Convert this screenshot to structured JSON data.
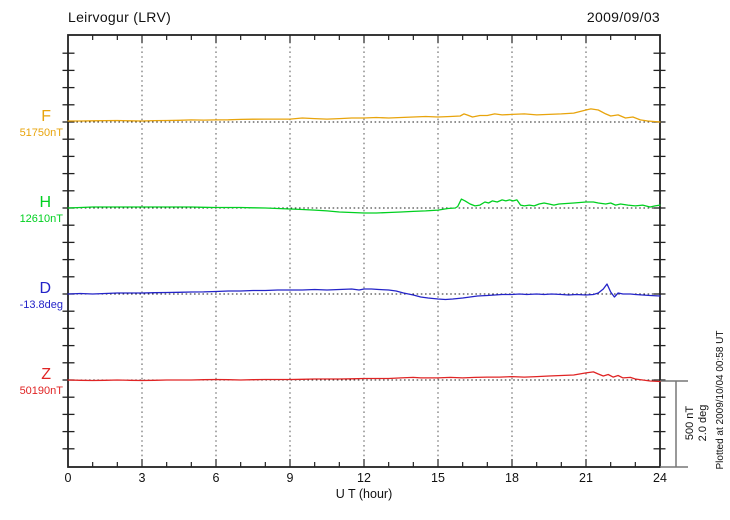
{
  "header": {
    "title": "Leirvogur (LRV)",
    "date": "2009/09/03"
  },
  "footer": {
    "plotted_at": "Plotted at 2009/10/04 00:58 UT"
  },
  "colors": {
    "F": "#e8a40c",
    "H": "#00d020",
    "D": "#2424c8",
    "Z": "#e02424",
    "frame": "#222222",
    "grid": "#555555",
    "baseline": "#222222",
    "scalebar": "#777777",
    "text": "#111111"
  },
  "chart_data": {
    "type": "line",
    "title": "Leirvogur (LRV)",
    "date": "2009/09/03",
    "xlabel": "U T (hour)",
    "x_range": [
      0,
      24
    ],
    "x_ticks": [
      0,
      3,
      6,
      9,
      12,
      15,
      18,
      21,
      24
    ],
    "x_minor_step_hours": 1,
    "grid": "dotted vertical gridlines every 3 hours; dotted horizontal baseline for each trace; y ticks every 100 nT (0.4 deg)",
    "legend_position": "left margin, one label per stacked trace",
    "scale": {
      "bar_label_nT": "500 nT",
      "bar_label_deg": "2.0 deg",
      "bar_span_nT": 500,
      "bar_span_deg": 2.0
    },
    "series": [
      {
        "name": "F",
        "baseline_label": "51750nT",
        "baseline_value": 51750,
        "unit": "nT",
        "color": "#e8a40c",
        "points": [
          [
            0,
            6
          ],
          [
            0.5,
            6
          ],
          [
            1,
            7
          ],
          [
            1.5,
            8
          ],
          [
            2,
            9
          ],
          [
            2.5,
            7
          ],
          [
            3,
            6
          ],
          [
            3.5,
            8
          ],
          [
            4,
            9
          ],
          [
            4.5,
            10
          ],
          [
            5,
            12
          ],
          [
            5.5,
            11
          ],
          [
            6,
            12
          ],
          [
            6.5,
            13
          ],
          [
            7,
            15
          ],
          [
            7.5,
            16
          ],
          [
            8,
            17
          ],
          [
            8.5,
            17
          ],
          [
            9,
            17
          ],
          [
            9.5,
            23
          ],
          [
            10,
            20
          ],
          [
            10.5,
            17
          ],
          [
            11,
            20
          ],
          [
            11.5,
            23
          ],
          [
            12,
            23
          ],
          [
            12.5,
            26
          ],
          [
            13,
            23
          ],
          [
            13.5,
            26
          ],
          [
            14,
            29
          ],
          [
            14.5,
            32
          ],
          [
            15,
            29
          ],
          [
            15.5,
            32
          ],
          [
            15.9,
            35
          ],
          [
            16.05,
            47
          ],
          [
            16.2,
            40
          ],
          [
            16.4,
            29
          ],
          [
            16.7,
            38
          ],
          [
            17,
            38
          ],
          [
            17.3,
            47
          ],
          [
            17.6,
            41
          ],
          [
            18,
            44
          ],
          [
            18.5,
            47
          ],
          [
            19,
            41
          ],
          [
            19.5,
            44
          ],
          [
            20,
            47
          ],
          [
            20.5,
            52
          ],
          [
            21,
            70
          ],
          [
            21.2,
            76
          ],
          [
            21.5,
            70
          ],
          [
            21.8,
            47
          ],
          [
            22,
            35
          ],
          [
            22.3,
            41
          ],
          [
            22.6,
            23
          ],
          [
            22.9,
            29
          ],
          [
            23.2,
            12
          ],
          [
            23.5,
            6
          ],
          [
            24,
            0
          ]
        ]
      },
      {
        "name": "H",
        "baseline_label": "12610nT",
        "baseline_value": 12610,
        "unit": "nT",
        "color": "#00d020",
        "points": [
          [
            0,
            0
          ],
          [
            0.5,
            3
          ],
          [
            1,
            6
          ],
          [
            1.5,
            6
          ],
          [
            2,
            6
          ],
          [
            2.5,
            6
          ],
          [
            3,
            6
          ],
          [
            3.5,
            6
          ],
          [
            4,
            6
          ],
          [
            4.5,
            6
          ],
          [
            5,
            6
          ],
          [
            5.5,
            4
          ],
          [
            6,
            3
          ],
          [
            6.5,
            3
          ],
          [
            7,
            3
          ],
          [
            7.5,
            1
          ],
          [
            8,
            0
          ],
          [
            8.5,
            -3
          ],
          [
            9,
            -6
          ],
          [
            9.5,
            -9
          ],
          [
            10,
            -12
          ],
          [
            10.5,
            -17
          ],
          [
            11,
            -23
          ],
          [
            11.5,
            -26
          ],
          [
            12,
            -29
          ],
          [
            12.5,
            -29
          ],
          [
            13,
            -26
          ],
          [
            13.5,
            -23
          ],
          [
            14,
            -20
          ],
          [
            14.5,
            -17
          ],
          [
            15,
            -12
          ],
          [
            15.4,
            -3
          ],
          [
            15.7,
            0
          ],
          [
            15.8,
            9
          ],
          [
            15.95,
            52
          ],
          [
            16.1,
            41
          ],
          [
            16.3,
            23
          ],
          [
            16.5,
            12
          ],
          [
            16.7,
            17
          ],
          [
            16.9,
            35
          ],
          [
            17.05,
            29
          ],
          [
            17.2,
            41
          ],
          [
            17.4,
            35
          ],
          [
            17.6,
            47
          ],
          [
            17.75,
            41
          ],
          [
            17.9,
            47
          ],
          [
            18.05,
            41
          ],
          [
            18.2,
            47
          ],
          [
            18.35,
            17
          ],
          [
            18.5,
            12
          ],
          [
            18.7,
            17
          ],
          [
            18.9,
            12
          ],
          [
            19.1,
            23
          ],
          [
            19.3,
            29
          ],
          [
            19.5,
            23
          ],
          [
            19.7,
            17
          ],
          [
            19.9,
            23
          ],
          [
            20.2,
            26
          ],
          [
            20.5,
            29
          ],
          [
            21,
            35
          ],
          [
            21.3,
            35
          ],
          [
            21.5,
            29
          ],
          [
            21.8,
            23
          ],
          [
            22,
            29
          ],
          [
            22.2,
            17
          ],
          [
            22.4,
            23
          ],
          [
            22.7,
            17
          ],
          [
            23,
            12
          ],
          [
            23.3,
            17
          ],
          [
            23.6,
            6
          ],
          [
            23.8,
            12
          ],
          [
            24,
            17
          ]
        ]
      },
      {
        "name": "D",
        "baseline_label": "-13.8deg",
        "baseline_value": -13.8,
        "unit": "deg",
        "color": "#2424c8",
        "points": [
          [
            0,
            0
          ],
          [
            0.5,
            0.012
          ],
          [
            1,
            0
          ],
          [
            1.5,
            0.012
          ],
          [
            2,
            0.023
          ],
          [
            2.5,
            0.023
          ],
          [
            3,
            0.023
          ],
          [
            3.5,
            0.03
          ],
          [
            4,
            0.035
          ],
          [
            4.5,
            0.04
          ],
          [
            5,
            0.047
          ],
          [
            5.5,
            0.05
          ],
          [
            6,
            0.058
          ],
          [
            6.5,
            0.07
          ],
          [
            7,
            0.07
          ],
          [
            7.5,
            0.081
          ],
          [
            8,
            0.081
          ],
          [
            8.5,
            0.093
          ],
          [
            9,
            0.093
          ],
          [
            9.5,
            0.093
          ],
          [
            10,
            0.105
          ],
          [
            10.5,
            0.093
          ],
          [
            11,
            0.105
          ],
          [
            11.5,
            0.116
          ],
          [
            11.8,
            0.093
          ],
          [
            12,
            0.116
          ],
          [
            12.3,
            0.116
          ],
          [
            12.6,
            0.105
          ],
          [
            13,
            0.093
          ],
          [
            13.3,
            0.07
          ],
          [
            13.6,
            0.023
          ],
          [
            13.8,
            0
          ],
          [
            14,
            -0.023
          ],
          [
            14.3,
            -0.07
          ],
          [
            14.6,
            -0.093
          ],
          [
            15,
            -0.116
          ],
          [
            15.3,
            -0.128
          ],
          [
            15.6,
            -0.116
          ],
          [
            16,
            -0.093
          ],
          [
            16.3,
            -0.07
          ],
          [
            16.6,
            -0.047
          ],
          [
            17,
            -0.035
          ],
          [
            17.3,
            -0.023
          ],
          [
            17.6,
            -0.012
          ],
          [
            18,
            -0.012
          ],
          [
            18.3,
            0
          ],
          [
            18.6,
            -0.012
          ],
          [
            19,
            0
          ],
          [
            19.3,
            -0.012
          ],
          [
            19.6,
            0
          ],
          [
            20,
            -0.012
          ],
          [
            20.3,
            -0.023
          ],
          [
            20.6,
            -0.012
          ],
          [
            21,
            -0.023
          ],
          [
            21.3,
            -0.012
          ],
          [
            21.5,
            0.023
          ],
          [
            21.7,
            0.116
          ],
          [
            21.85,
            0.233
          ],
          [
            22,
            0.047
          ],
          [
            22.15,
            -0.07
          ],
          [
            22.3,
            0.023
          ],
          [
            22.5,
            0
          ],
          [
            22.8,
            0
          ],
          [
            23,
            -0.012
          ],
          [
            23.3,
            -0.023
          ],
          [
            23.6,
            -0.035
          ],
          [
            24,
            -0.047
          ]
        ]
      },
      {
        "name": "Z",
        "baseline_label": "50190nT",
        "baseline_value": 50190,
        "unit": "nT",
        "color": "#e02424",
        "points": [
          [
            0,
            0
          ],
          [
            0.5,
            -2
          ],
          [
            1,
            -3
          ],
          [
            1.5,
            -2
          ],
          [
            2,
            0
          ],
          [
            2.5,
            -2
          ],
          [
            3,
            -3
          ],
          [
            3.5,
            -2
          ],
          [
            4,
            0
          ],
          [
            4.5,
            0
          ],
          [
            5,
            0
          ],
          [
            5.5,
            2
          ],
          [
            6,
            3
          ],
          [
            6.5,
            2
          ],
          [
            7,
            0
          ],
          [
            7.5,
            2
          ],
          [
            8,
            3
          ],
          [
            8.5,
            3
          ],
          [
            9,
            3
          ],
          [
            9.5,
            4
          ],
          [
            10,
            6
          ],
          [
            10.5,
            6
          ],
          [
            11,
            6
          ],
          [
            11.5,
            7
          ],
          [
            12,
            9
          ],
          [
            12.5,
            9
          ],
          [
            13,
            9
          ],
          [
            13.5,
            12
          ],
          [
            14,
            15
          ],
          [
            14.3,
            12
          ],
          [
            15,
            12
          ],
          [
            15.5,
            15
          ],
          [
            16,
            12
          ],
          [
            16.5,
            15
          ],
          [
            17,
            17
          ],
          [
            17.5,
            17
          ],
          [
            18,
            20
          ],
          [
            18.5,
            17
          ],
          [
            19,
            20
          ],
          [
            19.5,
            23
          ],
          [
            20,
            26
          ],
          [
            20.5,
            29
          ],
          [
            21,
            41
          ],
          [
            21.3,
            47
          ],
          [
            21.5,
            35
          ],
          [
            21.7,
            23
          ],
          [
            21.9,
            32
          ],
          [
            22.1,
            17
          ],
          [
            22.3,
            26
          ],
          [
            22.5,
            12
          ],
          [
            22.8,
            15
          ],
          [
            23,
            6
          ],
          [
            23.3,
            0
          ],
          [
            23.6,
            -6
          ],
          [
            24,
            -9
          ]
        ]
      }
    ]
  }
}
